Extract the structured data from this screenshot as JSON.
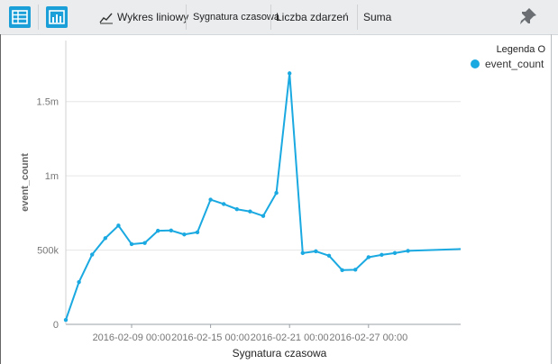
{
  "toolbar": {
    "chart_type_label": "Wykres liniowy",
    "axis_x_label": "Sygnatura czasowa",
    "axis_y_label": "Liczba zdarzeń",
    "aggregation_label": "Suma"
  },
  "legend": {
    "title": "Legenda O",
    "item_label": "event_count",
    "item_color": "#1aa9e1"
  },
  "chart_data": {
    "type": "line",
    "xlabel": "Sygnatura czasowa",
    "ylabel": "event_count",
    "y_ticks": [
      {
        "value": 0,
        "label": "0"
      },
      {
        "value": 500000,
        "label": "500k"
      },
      {
        "value": 1000000,
        "label": "1m"
      },
      {
        "value": 1500000,
        "label": "1.5m"
      }
    ],
    "x_ticks": [
      {
        "x": "2016-02-09",
        "label": "2016-02-09 00:00"
      },
      {
        "x": "2016-02-15",
        "label": "2016-02-15 00:00"
      },
      {
        "x": "2016-02-21",
        "label": "2016-02-21 00:00"
      },
      {
        "x": "2016-02-27",
        "label": "2016-02-27 00:00"
      }
    ],
    "xlim": [
      "2016-02-04",
      "2016-03-05"
    ],
    "ylim": [
      0,
      1850000
    ],
    "grid": "horizontal",
    "legend_position": "top-right",
    "series": [
      {
        "name": "event_count",
        "color": "#1aa9e1",
        "x": [
          "2016-02-04",
          "2016-02-05",
          "2016-02-06",
          "2016-02-07",
          "2016-02-08",
          "2016-02-09",
          "2016-02-10",
          "2016-02-11",
          "2016-02-12",
          "2016-02-13",
          "2016-02-14",
          "2016-02-15",
          "2016-02-16",
          "2016-02-17",
          "2016-02-18",
          "2016-02-19",
          "2016-02-20",
          "2016-02-21",
          "2016-02-22",
          "2016-02-23",
          "2016-02-24",
          "2016-02-25",
          "2016-02-26",
          "2016-02-27",
          "2016-02-28",
          "2016-02-29",
          "2016-03-01",
          "2016-03-02",
          "2016-03-03",
          "2016-03-04"
        ],
        "values": [
          30000,
          285000,
          470000,
          580000,
          665000,
          540000,
          548000,
          630000,
          632000,
          605000,
          620000,
          840000,
          810000,
          775000,
          760000,
          730000,
          885000,
          1690000,
          480000,
          492000,
          462000,
          365000,
          368000,
          452000,
          468000,
          480000,
          495000,
          null,
          null,
          null
        ]
      }
    ]
  }
}
